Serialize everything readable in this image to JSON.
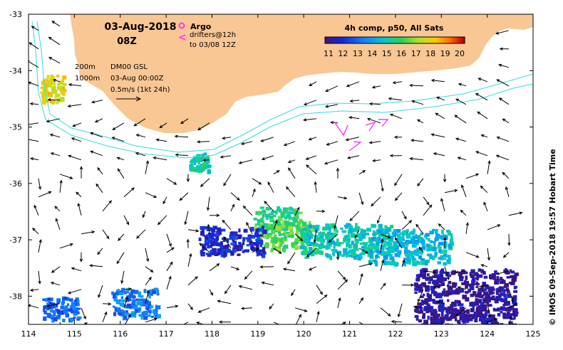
{
  "title": {
    "date": "03-Aug-2018",
    "hour": "08Z"
  },
  "legend_markers": {
    "argo_symbol": "o",
    "argo_label": "Argo",
    "drifter_symbol": "<",
    "drifter_label_1": "drifters@12h",
    "drifter_label_2": "to 03/08 12Z"
  },
  "contour_labels": {
    "c200": "200m",
    "c1000": "1000m"
  },
  "dataset_info": {
    "line1": "DM00 GSL",
    "line2": "03-Aug 00:00Z",
    "line3": "0.5m/s (1kt 24h)"
  },
  "colorbar": {
    "title": "4h comp, p50, All Sats",
    "ticks": [
      "11",
      "12",
      "13",
      "14",
      "15",
      "16",
      "17",
      "18",
      "19",
      "20"
    ]
  },
  "credit": "© IMOS 09-Sep-2018 19:57 Hobart Time",
  "axes": {
    "x_ticks": [
      "114",
      "115",
      "116",
      "117",
      "118",
      "119",
      "120",
      "121",
      "122",
      "123",
      "124",
      "125"
    ],
    "y_ticks": [
      "-33",
      "-34",
      "-35",
      "-36",
      "-37",
      "-38"
    ],
    "xlim": [
      114,
      125
    ],
    "ylim": [
      -38.5,
      -33
    ]
  },
  "colors": {
    "land": "#f9c794",
    "isobath": "#33dddd",
    "drifter": "#ff33ff",
    "frame": "#000000"
  },
  "chart_data": {
    "type": "heatmap",
    "title": "4h comp, p50, All Sats",
    "xlim": [
      114,
      125
    ],
    "ylim": [
      -38.5,
      -33
    ],
    "color_range": [
      11,
      20
    ],
    "sst_patches": [
      {
        "lon": 114.5,
        "lat": -34.3,
        "value": 17.8
      },
      {
        "lon": 117.7,
        "lat": -35.6,
        "value": 15.2
      },
      {
        "lon": 119.4,
        "lat": -36.6,
        "value": 15.8
      },
      {
        "lon": 119.6,
        "lat": -36.9,
        "value": 16.3
      },
      {
        "lon": 120.9,
        "lat": -37.0,
        "value": 14.9
      },
      {
        "lon": 122.3,
        "lat": -37.1,
        "value": 14.6
      },
      {
        "lon": 118.4,
        "lat": -37.0,
        "value": 12.0
      },
      {
        "lon": 123.5,
        "lat": -38.0,
        "value": 11.2
      },
      {
        "lon": 116.3,
        "lat": -38.1,
        "value": 13.4
      },
      {
        "lon": 114.7,
        "lat": -38.2,
        "value": 13.0
      }
    ]
  }
}
